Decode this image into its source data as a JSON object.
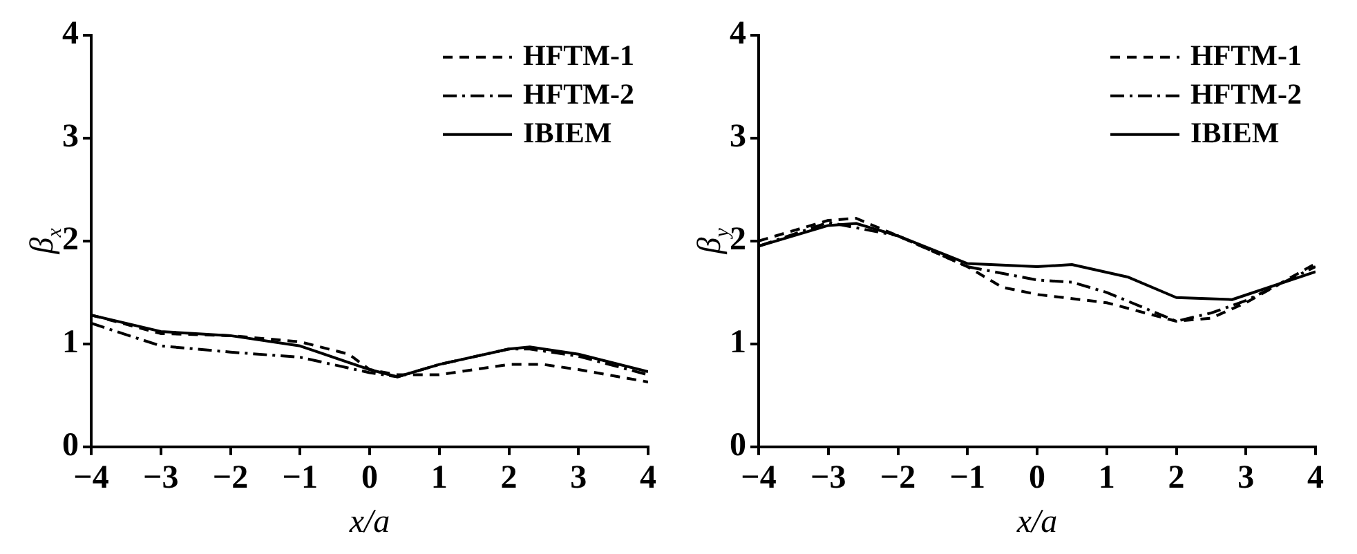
{
  "chart_data": [
    {
      "type": "line",
      "xlabel": "x/a",
      "ylabel": "β$_{x}$",
      "xlim": [
        -4,
        4
      ],
      "xticks": [
        -4,
        -3,
        -2,
        -1,
        0,
        1,
        2,
        3,
        4
      ],
      "ylim": [
        0,
        4
      ],
      "yticks": [
        0,
        1,
        2,
        3,
        4
      ],
      "legend": "top right",
      "grid": false,
      "marker": "none",
      "series": [
        {
          "name": "HFTM-1",
          "color": "#000000",
          "line_style": "dashed",
          "x": [
            -4,
            -3,
            -2,
            -1,
            -0.3,
            0,
            0.4,
            1,
            2,
            2.5,
            3,
            4
          ],
          "values": [
            1.28,
            1.1,
            1.08,
            1.02,
            0.9,
            0.75,
            0.7,
            0.7,
            0.8,
            0.8,
            0.75,
            0.63
          ]
        },
        {
          "name": "HFTM-2",
          "color": "#000000",
          "line_style": "dashdot",
          "x": [
            -4,
            -3,
            -2,
            -1,
            0,
            0.4,
            1,
            2,
            2.3,
            3,
            4
          ],
          "values": [
            1.2,
            0.98,
            0.92,
            0.87,
            0.72,
            0.68,
            0.8,
            0.95,
            0.95,
            0.88,
            0.7
          ]
        },
        {
          "name": "IBIEM",
          "color": "#000000",
          "line_style": "solid",
          "x": [
            -4,
            -3,
            -2,
            -1,
            0,
            0.4,
            1,
            2,
            2.3,
            3,
            4
          ],
          "values": [
            1.28,
            1.12,
            1.08,
            0.98,
            0.75,
            0.68,
            0.8,
            0.95,
            0.97,
            0.9,
            0.73
          ]
        }
      ]
    },
    {
      "type": "line",
      "xlabel": "x/a",
      "ylabel": "β$_{y}$",
      "xlim": [
        -4,
        4
      ],
      "xticks": [
        -4,
        -3,
        -2,
        -1,
        0,
        1,
        2,
        3,
        4
      ],
      "ylim": [
        0,
        4
      ],
      "yticks": [
        0,
        1,
        2,
        3,
        4
      ],
      "legend": "top right",
      "grid": false,
      "marker": "none",
      "series": [
        {
          "name": "HFTM-1",
          "color": "#000000",
          "line_style": "dashed",
          "x": [
            -4,
            -3,
            -2.6,
            -2,
            -1,
            -0.5,
            0,
            1,
            2,
            2.5,
            3,
            4
          ],
          "values": [
            2.0,
            2.2,
            2.22,
            2.05,
            1.75,
            1.55,
            1.48,
            1.4,
            1.22,
            1.25,
            1.4,
            1.78
          ]
        },
        {
          "name": "HFTM-2",
          "color": "#000000",
          "line_style": "dashdot",
          "x": [
            -4,
            -3,
            -2,
            -1,
            0,
            0.5,
            1,
            2,
            2.5,
            3,
            4
          ],
          "values": [
            1.95,
            2.18,
            2.05,
            1.75,
            1.62,
            1.6,
            1.5,
            1.22,
            1.3,
            1.42,
            1.75
          ]
        },
        {
          "name": "IBIEM",
          "color": "#000000",
          "line_style": "solid",
          "x": [
            -4,
            -3,
            -2.6,
            -2,
            -1,
            0,
            0.5,
            1.3,
            2,
            2.8,
            4
          ],
          "values": [
            1.95,
            2.15,
            2.17,
            2.05,
            1.78,
            1.75,
            1.77,
            1.65,
            1.45,
            1.43,
            1.7
          ]
        }
      ]
    }
  ]
}
